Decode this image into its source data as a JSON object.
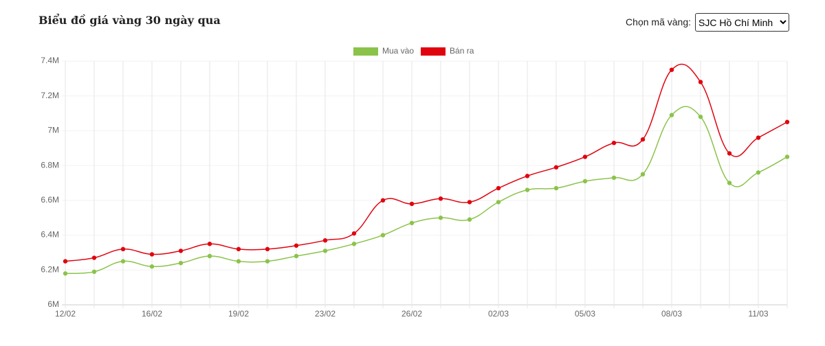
{
  "header": {
    "title": "Biểu đồ giá vàng 30 ngày qua",
    "select_label": "Chọn mã vàng:",
    "select_value": "SJC Hồ Chí Minh"
  },
  "chart_data": {
    "type": "line",
    "categories": [
      "12/02",
      null,
      null,
      "16/02",
      null,
      null,
      "19/02",
      null,
      null,
      "23/02",
      null,
      null,
      "26/02",
      null,
      null,
      "02/03",
      null,
      null,
      "05/03",
      null,
      null,
      "08/03",
      null,
      null,
      "11/03",
      null
    ],
    "series": [
      {
        "name": "Mua vào",
        "color": "#8bc34a",
        "values": [
          6180000,
          6190000,
          6250000,
          6220000,
          6240000,
          6280000,
          6250000,
          6250000,
          6280000,
          6310000,
          6350000,
          6400000,
          6470000,
          6500000,
          6490000,
          6590000,
          6660000,
          6670000,
          6710000,
          6730000,
          6750000,
          7090000,
          7080000,
          6700000,
          6760000,
          6850000
        ]
      },
      {
        "name": "Bán ra",
        "color": "#e0040f",
        "values": [
          6250000,
          6270000,
          6320000,
          6290000,
          6310000,
          6350000,
          6320000,
          6320000,
          6340000,
          6370000,
          6410000,
          6600000,
          6580000,
          6610000,
          6590000,
          6670000,
          6740000,
          6790000,
          6850000,
          6930000,
          6950000,
          7350000,
          7280000,
          6870000,
          6960000,
          7050000
        ]
      }
    ],
    "ylim": [
      6000000,
      7400000
    ],
    "yticks": [
      {
        "value": 6000000,
        "label": "6M"
      },
      {
        "value": 6200000,
        "label": "6.2M"
      },
      {
        "value": 6400000,
        "label": "6.4M"
      },
      {
        "value": 6600000,
        "label": "6.6M"
      },
      {
        "value": 6800000,
        "label": "6.8M"
      },
      {
        "value": 7000000,
        "label": "7M"
      },
      {
        "value": 7200000,
        "label": "7.2M"
      },
      {
        "value": 7400000,
        "label": "7.4M"
      }
    ],
    "legend": "top",
    "grid": true
  }
}
